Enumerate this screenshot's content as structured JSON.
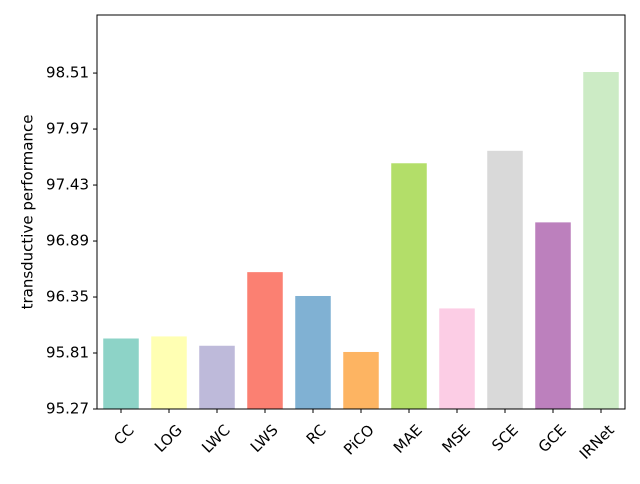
{
  "chart_data": {
    "type": "bar",
    "ylabel": "transductive performance",
    "categories": [
      "CC",
      "LOG",
      "LWC",
      "LWS",
      "RC",
      "PiCO",
      "MAE",
      "MSE",
      "SCE",
      "GCE",
      "IRNet"
    ],
    "values": [
      95.95,
      95.97,
      95.88,
      96.59,
      96.36,
      95.82,
      97.64,
      96.24,
      97.76,
      97.07,
      98.52
    ],
    "colors": [
      "#8dd3c7",
      "#ffffb3",
      "#bebada",
      "#fb8072",
      "#80b1d3",
      "#fdb462",
      "#b3de69",
      "#fccde5",
      "#d9d9d9",
      "#bc80bd",
      "#ccebc5"
    ],
    "ylim": [
      95.27,
      99.07
    ],
    "yticks": [
      95.27,
      95.81,
      96.35,
      96.89,
      97.43,
      97.97,
      98.51
    ],
    "grid": false
  }
}
